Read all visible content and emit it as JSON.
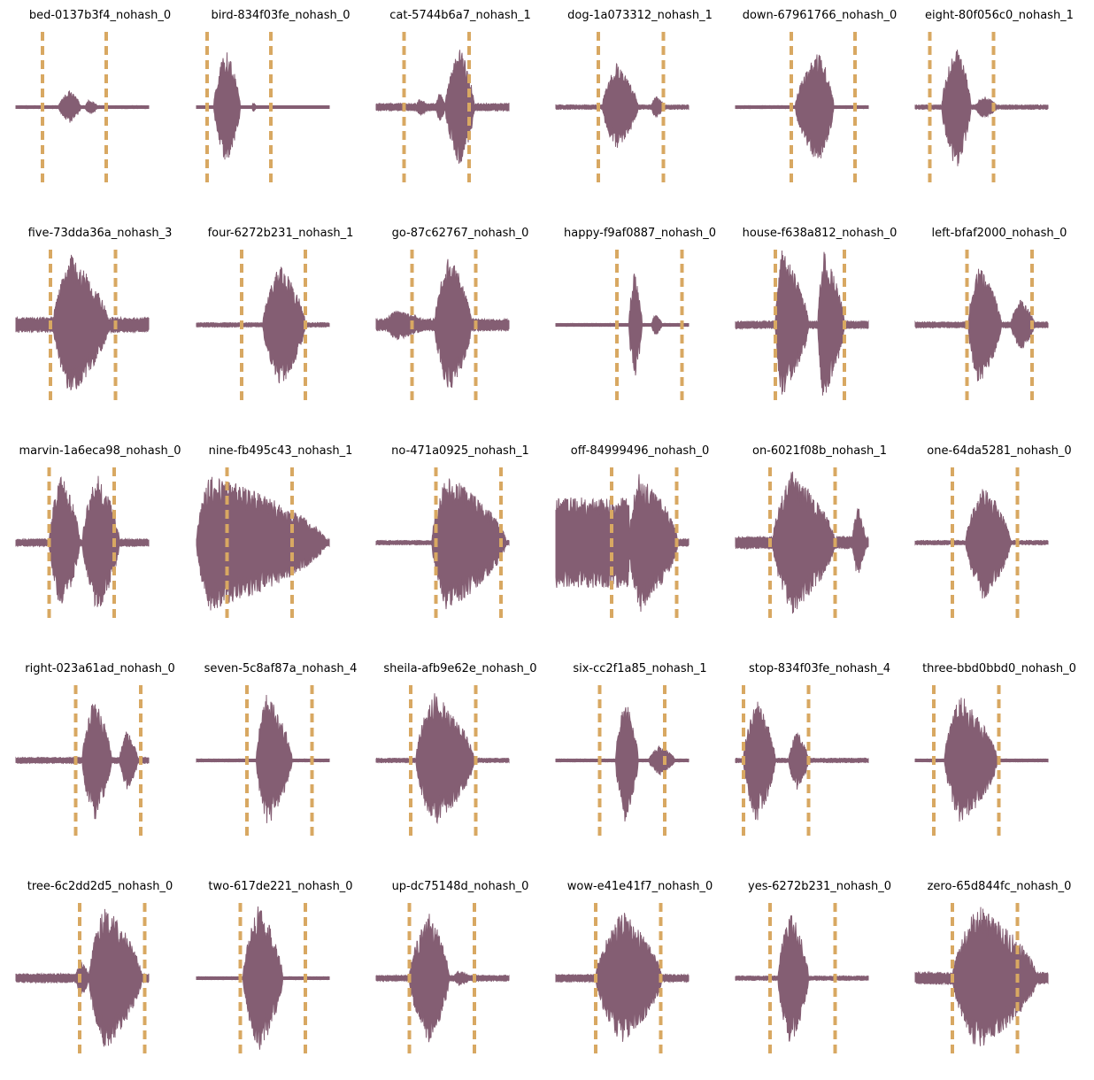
{
  "chart_data": {
    "type": "line",
    "colors": {
      "waveform": "#845e73",
      "marker": "#d8a862",
      "background": "#ffffff"
    },
    "grid": false,
    "axes_visible": false,
    "rows": 5,
    "cols": 6,
    "panels": [
      {
        "title": "bed-0137b3f4_nohash_0",
        "markers": [
          0.2,
          0.68
        ],
        "shape": "p:0.32,0.49,0.22,0.5;b:0.52,0.62,0.10,0.3;n:0.02"
      },
      {
        "title": "bird-834f03fe_nohash_0",
        "markers": [
          0.08,
          0.56
        ],
        "shape": "p:0.13,0.33,0.78,0.45;b:0.42,0.45,0.07,0.15;n:0.01"
      },
      {
        "title": "cat-5744b6a7_nohash_1",
        "markers": [
          0.21,
          0.7
        ],
        "shape": "p:0.52,0.74,0.80,0.5;b:0.30,0.40,0.12,0.3;b:0.45,0.52,0.20,0.4;n:0.05"
      },
      {
        "title": "dog-1a073312_nohash_1",
        "markers": [
          0.32,
          0.81
        ],
        "shape": "p:0.35,0.62,0.58,0.4;b:0.72,0.82,0.15,0.3;n:0.03"
      },
      {
        "title": "down-67961766_nohash_0",
        "markers": [
          0.42,
          0.9
        ],
        "shape": "p:0.45,0.74,0.78,0.6;n:0.02"
      },
      {
        "title": "eight-80f056c0_nohash_1",
        "markers": [
          0.11,
          0.59
        ],
        "shape": "p:0.20,0.42,0.85,0.5;b:0.45,0.62,0.15,0.4;n:0.03"
      },
      {
        "title": "five-73dda36a_nohash_3",
        "markers": [
          0.26,
          0.75
        ],
        "shape": "p:0.28,0.70,0.96,0.3;b:0.75,0.92,0.10,0.3;n:0.10"
      },
      {
        "title": "four-6272b231_nohash_1",
        "markers": [
          0.34,
          0.82
        ],
        "shape": "p:0.50,0.82,0.85,0.4;n:0.03"
      },
      {
        "title": "go-87c62767_nohash_0",
        "markers": [
          0.27,
          0.75
        ],
        "shape": "p:0.44,0.72,0.95,0.4;b:0.05,0.40,0.20,0.3;n:0.08"
      },
      {
        "title": "happy-f9af0887_nohash_0",
        "markers": [
          0.46,
          0.95
        ],
        "shape": "p:0.55,0.65,0.75,0.4;b:0.72,0.80,0.15,0.4;n:0.02"
      },
      {
        "title": "house-f638a812_nohash_0",
        "markers": [
          0.3,
          0.82
        ],
        "shape": "p:0.30,0.55,1.00,0.2;p:0.62,0.82,1.00,0.2;n:0.05"
      },
      {
        "title": "left-bfaf2000_nohash_0",
        "markers": [
          0.39,
          0.88
        ],
        "shape": "p:0.40,0.65,0.82,0.3;b:0.72,0.90,0.35,0.4;n:0.04"
      },
      {
        "title": "marvin-1a6eca98_nohash_0",
        "markers": [
          0.25,
          0.74
        ],
        "shape": "p:0.25,0.48,0.95,0.4;p:0.50,0.78,0.95,0.4;n:0.05"
      },
      {
        "title": "nine-fb495c43_nohash_1",
        "markers": [
          0.23,
          0.72
        ],
        "shape": "p:0.00,0.98,0.92,0.1;n:0.05"
      },
      {
        "title": "no-471a0925_nohash_1",
        "markers": [
          0.45,
          0.94
        ],
        "shape": "p:0.42,0.98,0.92,0.2;n:0.03"
      },
      {
        "title": "off-84999496_nohash_0",
        "markers": [
          0.42,
          0.91
        ],
        "shape": "f:0.00,0.55,0.60;p:0.55,0.92,0.95,0.2;n:0.05"
      },
      {
        "title": "on-6021f08b_nohash_1",
        "markers": [
          0.26,
          0.75
        ],
        "shape": "p:0.28,0.75,0.96,0.3;b:0.88,0.98,0.50,0.4;n:0.08"
      },
      {
        "title": "one-64da5281_nohash_0",
        "markers": [
          0.28,
          0.77
        ],
        "shape": "p:0.38,0.72,0.78,0.4;n:0.03"
      },
      {
        "title": "right-023a61ad_nohash_0",
        "markers": [
          0.45,
          0.94
        ],
        "shape": "p:0.50,0.72,0.85,0.4;b:0.78,0.92,0.40,0.4;n:0.04"
      },
      {
        "title": "seven-5c8af87a_nohash_4",
        "markers": [
          0.38,
          0.87
        ],
        "shape": "p:0.45,0.72,0.90,0.3;n:0.02"
      },
      {
        "title": "sheila-afb9e62e_nohash_0",
        "markers": [
          0.26,
          0.75
        ],
        "shape": "p:0.30,0.74,0.92,0.3;n:0.03"
      },
      {
        "title": "six-cc2f1a85_nohash_1",
        "markers": [
          0.33,
          0.82
        ],
        "shape": "p:0.45,0.62,0.85,0.4;b:0.70,0.90,0.20,0.4;n:0.02"
      },
      {
        "title": "stop-834f03fe_nohash_4",
        "markers": [
          0.06,
          0.55
        ],
        "shape": "p:0.06,0.30,0.85,0.4;b:0.40,0.55,0.40,0.4;n:0.03"
      },
      {
        "title": "three-bbd0bbd0_nohash_0",
        "markers": [
          0.14,
          0.63
        ],
        "shape": "p:0.22,0.62,0.88,0.3;n:0.02"
      },
      {
        "title": "tree-6c2dd2d5_nohash_0",
        "markers": [
          0.48,
          0.97
        ],
        "shape": "p:0.55,0.95,0.98,0.3;b:0.45,0.55,0.25,0.4;n:0.06"
      },
      {
        "title": "two-617de221_nohash_0",
        "markers": [
          0.33,
          0.82
        ],
        "shape": "p:0.35,0.65,1.00,0.4;n:0.02"
      },
      {
        "title": "up-dc75148d_nohash_0",
        "markers": [
          0.25,
          0.74
        ],
        "shape": "p:0.25,0.55,0.90,0.5;b:0.58,0.72,0.10,0.3;n:0.04"
      },
      {
        "title": "wow-e41e41f7_nohash_0",
        "markers": [
          0.3,
          0.79
        ],
        "shape": "p:0.30,0.80,0.90,0.4;n:0.05"
      },
      {
        "title": "yes-6272b231_nohash_0",
        "markers": [
          0.26,
          0.75
        ],
        "shape": "p:0.32,0.55,0.92,0.4;n:0.03"
      },
      {
        "title": "zero-65d844fc_nohash_0",
        "markers": [
          0.28,
          0.77
        ],
        "shape": "p:0.28,0.92,0.98,0.3;n:0.08"
      }
    ]
  }
}
